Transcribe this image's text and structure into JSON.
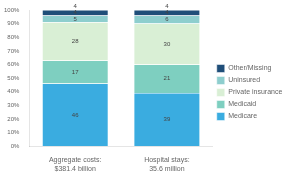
{
  "chart_data": {
    "type": "bar",
    "stacked": true,
    "data_labels": true,
    "grid": false,
    "legend": "right",
    "categories": [
      "Aggregate costs:\n$381.4 billion",
      "Hospital stays:\n35.6 million"
    ],
    "series": [
      {
        "name": "Medicare",
        "color": "#3aace0",
        "values": [
          46,
          39
        ]
      },
      {
        "name": "Medicaid",
        "color": "#7ecfc0",
        "values": [
          17,
          21
        ]
      },
      {
        "name": "Private insurance",
        "color": "#d9efd5",
        "values": [
          28,
          30
        ]
      },
      {
        "name": "Uninsured",
        "color": "#8ecece",
        "values": [
          5,
          6
        ]
      },
      {
        "name": "Other/Missing",
        "color": "#1f4e79",
        "values": [
          4,
          4
        ]
      }
    ],
    "annotations": [
      {
        "category": "Aggregate costs:\n$381.4 billion",
        "text": "4"
      },
      {
        "category": "Hospital stays:\n35.6 million",
        "text": "4"
      }
    ],
    "ylim": [
      0,
      100
    ],
    "yticks": [
      {
        "value": 0,
        "label": "0%"
      },
      {
        "value": 10,
        "label": "10%"
      },
      {
        "value": 20,
        "label": "20%"
      },
      {
        "value": 30,
        "label": "30%"
      },
      {
        "value": 40,
        "label": "40%"
      },
      {
        "value": 50,
        "label": "50%"
      },
      {
        "value": 60,
        "label": "60%"
      },
      {
        "value": 70,
        "label": "70%"
      },
      {
        "value": 80,
        "label": "80%"
      },
      {
        "value": 90,
        "label": "90%"
      },
      {
        "value": 100,
        "label": "100%"
      }
    ]
  }
}
